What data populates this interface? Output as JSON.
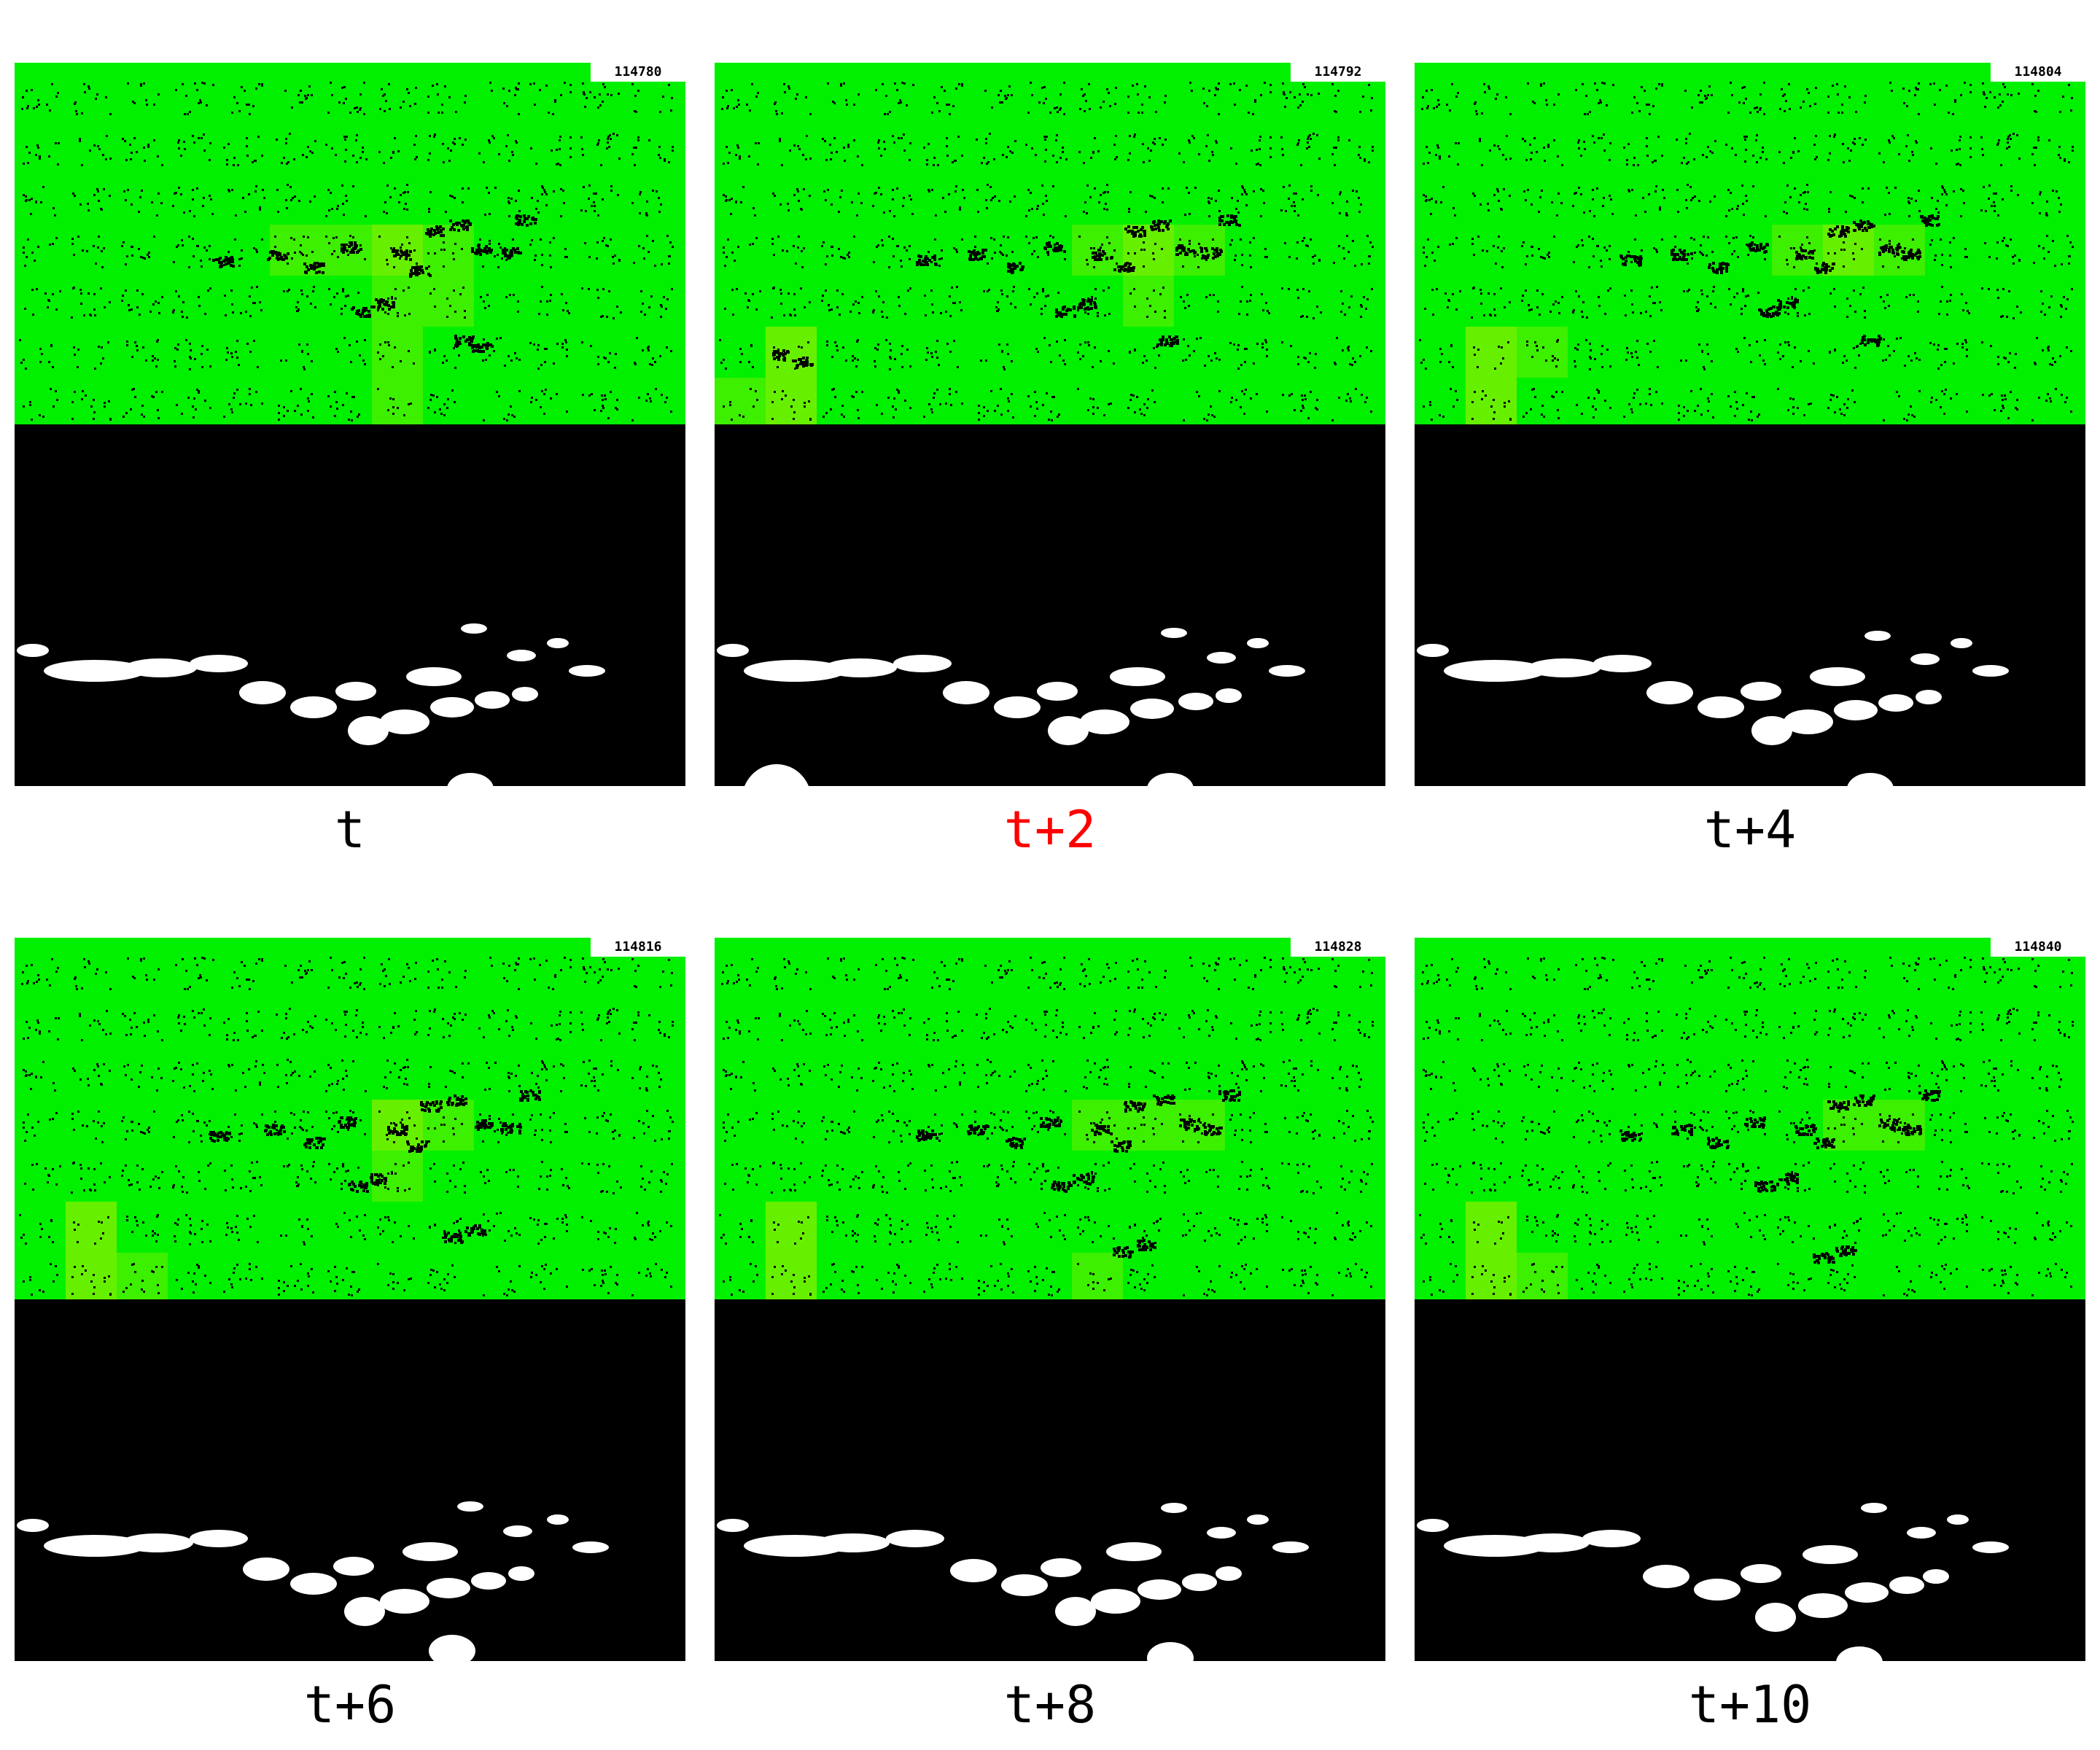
{
  "panels": [
    {
      "label": "t",
      "frame_id": "114780",
      "highlight": false
    },
    {
      "label": "t+2",
      "frame_id": "114792",
      "highlight": true
    },
    {
      "label": "t+4",
      "frame_id": "114804",
      "highlight": false
    },
    {
      "label": "t+6",
      "frame_id": "114816",
      "highlight": false
    },
    {
      "label": "t+8",
      "frame_id": "114828",
      "highlight": false
    },
    {
      "label": "t+10",
      "frame_id": "114840",
      "highlight": false
    }
  ],
  "colors": {
    "background": "#ffffff",
    "grid_green": "#00f000",
    "active_cell": "#66f000",
    "dim_cell": "#3cf000",
    "mask_background": "#000000",
    "mask_blob": "#ffffff",
    "caption_text": "#000000",
    "caption_highlight": "#ff0000"
  }
}
